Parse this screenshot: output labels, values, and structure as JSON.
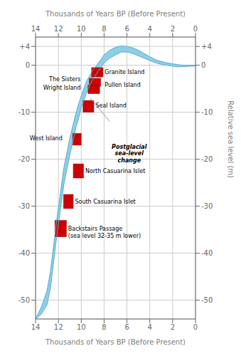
{
  "chart_data": {
    "type": "area",
    "xlabel": "Thousands of Years BP (Before Present)",
    "ylabel_right": "Relative sea level (m)",
    "xlim": [
      14,
      0
    ],
    "xticks": [
      14,
      12,
      10,
      8,
      6,
      4,
      2,
      0
    ],
    "ylim": [
      -54,
      6
    ],
    "yticks": [
      {
        "value": 4,
        "label": "+4"
      },
      0,
      -10,
      -20,
      -30,
      -40,
      -50
    ],
    "y2lim": [
      -54,
      6
    ],
    "y2ticks": [
      {
        "value": 4,
        "label": "+4"
      },
      0,
      -10,
      -20,
      -30,
      -40,
      -50
    ],
    "grid": true,
    "envelope": {
      "color": "#8ECFE8",
      "edge_color": "#5AACCC",
      "x": [
        14.0,
        13.5,
        13.0,
        12.7,
        12.5,
        12.3,
        12.1,
        11.9,
        11.7,
        11.5,
        11.2,
        11.0,
        10.7,
        10.5,
        10.2,
        10.0,
        9.7,
        9.5,
        9.2,
        9.0,
        8.7,
        8.5,
        8.2,
        8.0,
        7.5,
        7.0,
        6.5,
        6.0,
        5.5,
        5.0,
        4.5,
        4.0,
        3.5,
        3.0,
        2.5,
        2.0,
        1.5,
        1.0,
        0.5,
        0.0
      ],
      "upper": [
        -54.0,
        -51.5,
        -48.0,
        -44.0,
        -40.0,
        -36.0,
        -32.0,
        -28.5,
        -25.0,
        -21.5,
        -18.0,
        -15.5,
        -12.5,
        -10.5,
        -8.0,
        -6.5,
        -4.5,
        -3.2,
        -2.0,
        -1.0,
        -0.2,
        0.5,
        1.5,
        2.2,
        3.2,
        3.8,
        4.1,
        4.0,
        3.7,
        3.2,
        2.5,
        1.8,
        1.2,
        0.8,
        0.5,
        0.3,
        0.1,
        0.0,
        0.0,
        0.0
      ],
      "lower": [
        -54.0,
        -53.0,
        -51.0,
        -47.5,
        -43.5,
        -39.5,
        -35.5,
        -32.0,
        -28.5,
        -25.0,
        -21.5,
        -19.0,
        -16.0,
        -13.5,
        -11.0,
        -9.0,
        -7.0,
        -5.5,
        -4.0,
        -3.0,
        -2.0,
        -1.2,
        -0.2,
        0.5,
        1.5,
        2.2,
        2.8,
        2.8,
        2.5,
        2.0,
        1.5,
        1.0,
        0.5,
        0.2,
        0.0,
        -0.2,
        -0.3,
        -0.3,
        -0.2,
        -0.2
      ]
    },
    "box_color": "#CC0000",
    "box_edge_color": "#880000",
    "boxes": [
      {
        "x_left": 9.1,
        "x_right": 8.1,
        "y_bottom": -2.5,
        "y_top": -0.5,
        "label": "Granite Island",
        "label_x": 7.95,
        "label_y": -1.5,
        "align": "left"
      },
      {
        "x_left": 9.3,
        "x_right": 8.3,
        "y_bottom": -4.5,
        "y_top": -2.8,
        "label": "The Sisters",
        "label_x": 10.05,
        "label_y": -3.0,
        "align": "right"
      },
      {
        "x_left": 9.4,
        "x_right": 8.4,
        "y_bottom": -6.0,
        "y_top": -4.3,
        "label": "Wright Island",
        "label_x": 10.05,
        "label_y": -4.8,
        "align": "right"
      },
      {
        "x_left": 9.4,
        "x_right": 8.4,
        "y_bottom": -6.0,
        "y_top": -4.3,
        "label": "Pullen Island",
        "label_x": 7.95,
        "label_y": -4.2,
        "align": "left"
      },
      {
        "x_left": 9.85,
        "x_right": 8.9,
        "y_bottom": -10.0,
        "y_top": -7.5,
        "label": "Seal Island",
        "label_x": 8.75,
        "label_y": -8.5,
        "align": "left"
      },
      {
        "x_left": 10.75,
        "x_right": 10.0,
        "y_bottom": -17.0,
        "y_top": -14.5,
        "label": "West Island",
        "label_x": 11.65,
        "label_y": -15.5,
        "align": "right"
      },
      {
        "x_left": 10.7,
        "x_right": 9.8,
        "y_bottom": -24.0,
        "y_top": -21.0,
        "label": "North Casuarina Islet",
        "label_x": 9.65,
        "label_y": -22.5,
        "align": "left"
      },
      {
        "x_left": 11.55,
        "x_right": 10.7,
        "y_bottom": -30.5,
        "y_top": -27.5,
        "label": "South Casuarina Islet",
        "label_x": 10.55,
        "label_y": -29.0,
        "align": "left"
      },
      {
        "x_left": 12.3,
        "x_right": 11.3,
        "y_bottom": -36.5,
        "y_top": -33.0,
        "label": "Backstairs Passage\n(sea level 32-35 m lower)",
        "label_x": 11.15,
        "label_y": -35.5,
        "align": "left"
      }
    ],
    "annotations": [
      {
        "text": "Postglacial\nsea-level\nchange",
        "x": 5.8,
        "y": -16.5,
        "line_color": "#999999",
        "line_from": [
          7.5,
          -12.0
        ],
        "line_to": [
          9.2,
          -7.0
        ]
      }
    ]
  }
}
